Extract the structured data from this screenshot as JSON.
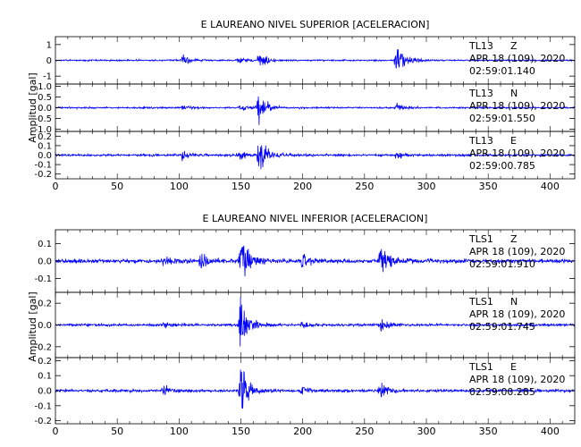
{
  "chart_data": [
    {
      "type": "line",
      "title": "E LAUREANO NIVEL SUPERIOR [ACELERACION]",
      "ylabel": "Amplitud [gal]",
      "xlabel": "",
      "xlim": [
        0,
        420
      ],
      "x_ticks": [
        0,
        50,
        100,
        150,
        200,
        250,
        300,
        350,
        400
      ],
      "grid": false,
      "line_color": "#0000ff",
      "panels": [
        {
          "station": "TL13",
          "component": "Z",
          "date": "APR 18 (109), 2020",
          "time": "02:59:01.140",
          "ylim": [
            -1.5,
            1.5
          ],
          "y_tick_labels": [
            "1",
            "0",
            "-1"
          ],
          "y_ticks": [
            1,
            0,
            -1
          ],
          "noise": 0.05,
          "events": [
            {
              "t": 103,
              "amp": 0.4
            },
            {
              "t": 148,
              "amp": 0.25
            },
            {
              "t": 165,
              "amp": 0.7
            },
            {
              "t": 276,
              "amp": 1.2
            }
          ]
        },
        {
          "station": "TL13",
          "component": "N",
          "date": "APR 18 (109), 2020",
          "time": "02:59:01.550",
          "ylim": [
            -1.1,
            1.1
          ],
          "y_tick_labels": [
            "1.0",
            "0.5",
            "0.0",
            "-0.5",
            "-1.0"
          ],
          "y_ticks": [
            1,
            0.5,
            0,
            -0.5,
            -1
          ],
          "noise": 0.04,
          "events": [
            {
              "t": 103,
              "amp": 0.12
            },
            {
              "t": 150,
              "amp": 0.15
            },
            {
              "t": 164,
              "amp": 0.75
            },
            {
              "t": 276,
              "amp": 0.25
            }
          ]
        },
        {
          "station": "TL13",
          "component": "E",
          "date": "APR 18 (109), 2020",
          "time": "02:59:00.785",
          "ylim": [
            -0.25,
            0.25
          ],
          "y_tick_labels": [
            "0.2",
            "0.1",
            "0.0",
            "-0.1",
            "-0.2"
          ],
          "y_ticks": [
            0.2,
            0.1,
            0,
            -0.1,
            -0.2
          ],
          "noise": 0.012,
          "events": [
            {
              "t": 103,
              "amp": 0.05
            },
            {
              "t": 148,
              "amp": 0.07
            },
            {
              "t": 165,
              "amp": 0.22
            },
            {
              "t": 276,
              "amp": 0.06
            }
          ]
        }
      ]
    },
    {
      "type": "line",
      "title": "E LAUREANO NIVEL INFERIOR [ACELERACION]",
      "ylabel": "Amplitud [gal]",
      "xlabel": "",
      "xlim": [
        0,
        420
      ],
      "x_ticks": [
        0,
        50,
        100,
        150,
        200,
        250,
        300,
        350,
        400
      ],
      "grid": false,
      "line_color": "#0000ff",
      "panels": [
        {
          "station": "TLS1",
          "component": "Z",
          "date": "APR 18 (109), 2020",
          "time": "02:59:01.910",
          "ylim": [
            -0.18,
            0.18
          ],
          "y_tick_labels": [
            "0.1",
            "0.0",
            "-0.1"
          ],
          "y_ticks": [
            0.1,
            0,
            -0.1
          ],
          "noise": 0.012,
          "events": [
            {
              "t": 88,
              "amp": 0.04
            },
            {
              "t": 118,
              "amp": 0.05
            },
            {
              "t": 150,
              "amp": 0.16
            },
            {
              "t": 200,
              "amp": 0.04
            },
            {
              "t": 263,
              "amp": 0.13
            }
          ]
        },
        {
          "station": "TLS1",
          "component": "N",
          "date": "APR 18 (109), 2020",
          "time": "02:59:01.745",
          "ylim": [
            -0.3,
            0.3
          ],
          "y_tick_labels": [
            "0.2",
            "0.0",
            "-0.2"
          ],
          "y_ticks": [
            0.2,
            0,
            -0.2
          ],
          "noise": 0.012,
          "events": [
            {
              "t": 88,
              "amp": 0.03
            },
            {
              "t": 150,
              "amp": 0.28
            },
            {
              "t": 200,
              "amp": 0.04
            },
            {
              "t": 263,
              "amp": 0.08
            }
          ]
        },
        {
          "station": "TLS1",
          "component": "E",
          "date": "APR 18 (109), 2020",
          "time": "02:59:00.285",
          "ylim": [
            -0.22,
            0.22
          ],
          "y_tick_labels": [
            "0.2",
            "0.1",
            "0.0",
            "-0.1",
            "-0.2"
          ],
          "y_ticks": [
            0.2,
            0.1,
            0,
            -0.1,
            -0.2
          ],
          "noise": 0.01,
          "events": [
            {
              "t": 88,
              "amp": 0.03
            },
            {
              "t": 150,
              "amp": 0.2
            },
            {
              "t": 200,
              "amp": 0.04
            },
            {
              "t": 263,
              "amp": 0.07
            }
          ]
        }
      ]
    }
  ]
}
